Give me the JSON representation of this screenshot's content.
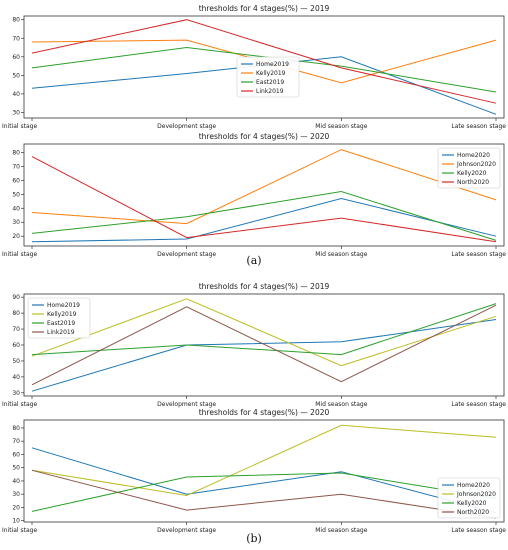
{
  "panel_labels": [
    "(a)",
    "(b)"
  ],
  "colors": {
    "blue": "#1f77b4",
    "orange": "#ff7f0e",
    "green": "#2ca02c",
    "red": "#d62728",
    "olive": "#bcbd22",
    "brown": "#8c564b",
    "pink": "#e377c2"
  },
  "chart_data": [
    {
      "type": "line",
      "title": "thresholds for 4 stages(%) — 2019",
      "categories": [
        "Initial stage",
        "Development stage",
        "Mid season stage",
        "Late season stage"
      ],
      "ylim": [
        27,
        82
      ],
      "yticks": [
        30,
        40,
        50,
        60,
        70,
        80
      ],
      "legend": "center",
      "series": [
        {
          "name": "Home2019",
          "values": [
            43,
            51,
            60,
            29
          ],
          "color": "#1f77b4"
        },
        {
          "name": "Kelly2019",
          "values": [
            68,
            69,
            46,
            69
          ],
          "color": "#ff7f0e"
        },
        {
          "name": "East2019",
          "values": [
            54,
            65,
            55,
            41
          ],
          "color": "#2ca02c"
        },
        {
          "name": "Link2019",
          "values": [
            62,
            80,
            54,
            35
          ],
          "color": "#d62728"
        }
      ]
    },
    {
      "type": "line",
      "title": "thresholds for 4 stages(%) — 2020",
      "categories": [
        "Initial stage",
        "Development stage",
        "Mid season stage",
        "Late season stage"
      ],
      "ylim": [
        13,
        86
      ],
      "yticks": [
        20,
        30,
        40,
        50,
        60,
        70,
        80
      ],
      "legend": "upper right",
      "series": [
        {
          "name": "Home2020",
          "values": [
            16,
            18,
            47,
            20
          ],
          "color": "#1f77b4"
        },
        {
          "name": "Johnson2020",
          "values": [
            37,
            29,
            82,
            46
          ],
          "color": "#ff7f0e"
        },
        {
          "name": "Kelly2020",
          "values": [
            22,
            34,
            52,
            17
          ],
          "color": "#2ca02c"
        },
        {
          "name": "North2020",
          "values": [
            77,
            19,
            33,
            16
          ],
          "color": "#d62728"
        }
      ]
    },
    {
      "type": "line",
      "title": "thresholds for 4 stages(%) — 2019",
      "categories": [
        "Initial stage",
        "Development stage",
        "Mid season stage",
        "Late season stage"
      ],
      "ylim": [
        28,
        92
      ],
      "yticks": [
        30,
        40,
        50,
        60,
        70,
        80,
        90
      ],
      "legend": "upper left",
      "series": [
        {
          "name": "Home2019",
          "values": [
            31,
            60,
            62,
            76
          ],
          "color": "#1f77b4"
        },
        {
          "name": "Kelly2019",
          "values": [
            53,
            89,
            47,
            78
          ],
          "color": "#bcbd22"
        },
        {
          "name": "East2019",
          "values": [
            54,
            60,
            54,
            86
          ],
          "color": "#2ca02c"
        },
        {
          "name": "Link2019",
          "values": [
            35,
            84,
            37,
            85
          ],
          "color": "#8c564b"
        }
      ]
    },
    {
      "type": "line",
      "title": "thresholds for 4 stages(%) — 2020",
      "categories": [
        "Initial stage",
        "Development stage",
        "Mid season stage",
        "Late season stage"
      ],
      "ylim": [
        9,
        86
      ],
      "yticks": [
        10,
        20,
        30,
        40,
        50,
        60,
        70,
        80
      ],
      "legend": "lower right",
      "series": [
        {
          "name": "Home2020",
          "values": [
            65,
            30,
            47,
            16
          ],
          "color": "#1f77b4"
        },
        {
          "name": "Johnson2020",
          "values": [
            48,
            29,
            82,
            73
          ],
          "color": "#bcbd22"
        },
        {
          "name": "Kelly2020",
          "values": [
            17,
            43,
            46,
            27
          ],
          "color": "#2ca02c"
        },
        {
          "name": "North2020",
          "values": [
            48,
            18,
            30,
            12
          ],
          "color": "#8c564b"
        }
      ]
    }
  ]
}
